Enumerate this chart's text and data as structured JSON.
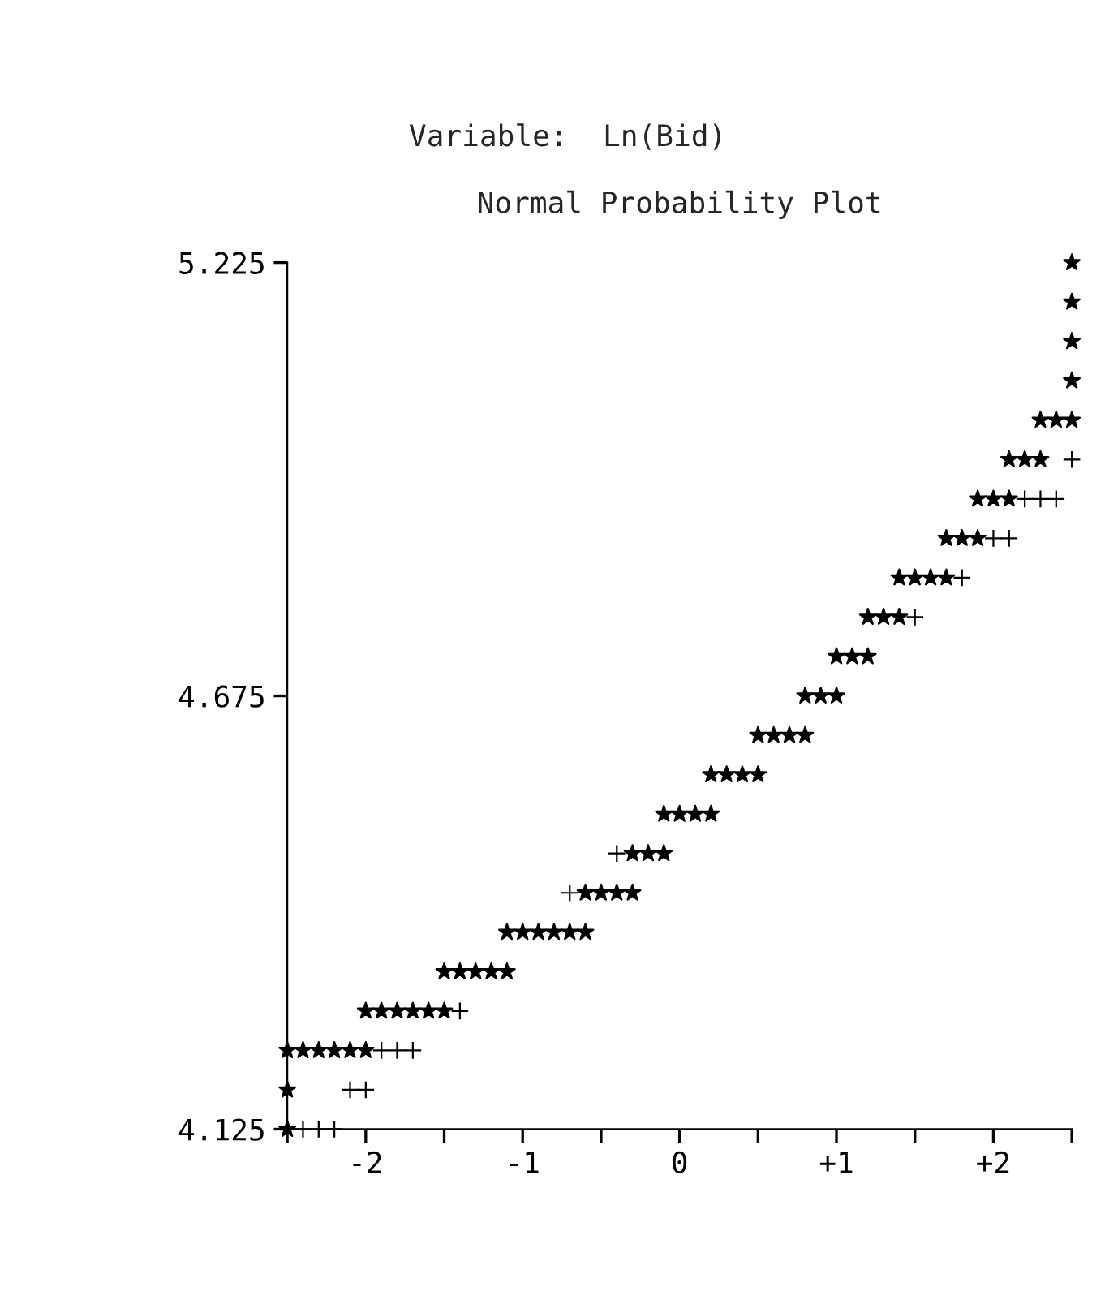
{
  "chart_data": {
    "type": "scatter",
    "title": "Normal Probability Plot",
    "subtitle": "Variable:  Ln(Bid)",
    "xlim": [
      -2.5,
      2.5
    ],
    "ylim": [
      4.125,
      5.225
    ],
    "xticks": [
      {
        "value": -2.5,
        "label": null
      },
      {
        "value": -2,
        "label": "-2"
      },
      {
        "value": -1.5,
        "label": null
      },
      {
        "value": -1,
        "label": "-1"
      },
      {
        "value": -0.5,
        "label": null
      },
      {
        "value": 0,
        "label": "0"
      },
      {
        "value": 0.5,
        "label": null
      },
      {
        "value": 1,
        "label": "+1"
      },
      {
        "value": 1.5,
        "label": null
      },
      {
        "value": 2,
        "label": "+2"
      },
      {
        "value": 2.5,
        "label": null
      }
    ],
    "yticks": [
      4.125,
      4.675,
      5.225
    ],
    "grid": false,
    "legend": false,
    "series": [
      {
        "color": "#000000",
        "marker": "star",
        "x": [
          2.5,
          2.5,
          2.5,
          2.5,
          2.3,
          2.4,
          2.5,
          2.1,
          2.2,
          2.3,
          1.9,
          2.0,
          2.1,
          1.7,
          1.8,
          1.9,
          1.4,
          1.5,
          1.6,
          1.7,
          1.2,
          1.3,
          1.4,
          1.0,
          1.1,
          1.2,
          0.8,
          0.9,
          1.0,
          0.5,
          0.6,
          0.7,
          0.8,
          0.2,
          0.3,
          0.4,
          0.5,
          -0.1,
          0.0,
          0.1,
          0.2,
          -0.3,
          -0.2,
          -0.1,
          -0.6,
          -0.5,
          -0.4,
          -0.3,
          -1.1,
          -1.0,
          -0.9,
          -0.8,
          -0.7,
          -0.6,
          -1.5,
          -1.4,
          -1.3,
          -1.2,
          -1.1,
          -2.0,
          -1.9,
          -1.8,
          -1.7,
          -1.6,
          -1.5,
          -2.5,
          -2.4,
          -2.3,
          -2.2,
          -2.1,
          -2.0,
          -2.5,
          -2.5
        ],
        "values": [
          5.225,
          5.175,
          5.125,
          5.075,
          5.025,
          5.025,
          5.025,
          4.975,
          4.975,
          4.975,
          4.925,
          4.925,
          4.925,
          4.875,
          4.875,
          4.875,
          4.825,
          4.825,
          4.825,
          4.825,
          4.775,
          4.775,
          4.775,
          4.725,
          4.725,
          4.725,
          4.675,
          4.675,
          4.675,
          4.625,
          4.625,
          4.625,
          4.625,
          4.575,
          4.575,
          4.575,
          4.575,
          4.525,
          4.525,
          4.525,
          4.525,
          4.475,
          4.475,
          4.475,
          4.425,
          4.425,
          4.425,
          4.425,
          4.375,
          4.375,
          4.375,
          4.375,
          4.375,
          4.375,
          4.325,
          4.325,
          4.325,
          4.325,
          4.325,
          4.275,
          4.275,
          4.275,
          4.275,
          4.275,
          4.275,
          4.225,
          4.225,
          4.225,
          4.225,
          4.225,
          4.225,
          4.175,
          4.125
        ]
      },
      {
        "color": "#000000",
        "marker": "cross",
        "x": [
          2.5,
          2.2,
          2.3,
          2.4,
          2.0,
          2.1,
          1.8,
          1.5,
          -0.4,
          -0.7,
          -1.4,
          -1.9,
          -1.8,
          -1.7,
          -2.1,
          -2.0,
          -2.4,
          -2.3,
          -2.2
        ],
        "values": [
          4.975,
          4.925,
          4.925,
          4.925,
          4.875,
          4.875,
          4.825,
          4.775,
          4.475,
          4.425,
          4.275,
          4.225,
          4.225,
          4.225,
          4.175,
          4.175,
          4.125,
          4.125,
          4.125
        ]
      }
    ]
  }
}
